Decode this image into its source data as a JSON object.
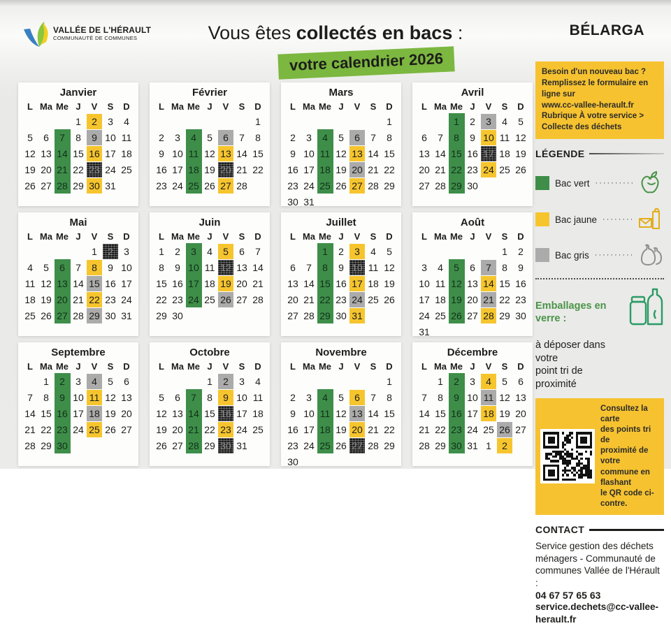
{
  "header": {
    "logo_title": "VALLÉE DE L'HÉRAULT",
    "logo_subtitle": "COMMUNAUTÉ DE COMMUNES",
    "title_pre": "Vous êtes ",
    "title_bold": "collectés en bacs",
    "title_post": " :",
    "banner": "votre calendrier 2026",
    "commune": "BÉLARGA"
  },
  "weekday_headers": [
    "L",
    "Ma",
    "Me",
    "J",
    "V",
    "S",
    "D"
  ],
  "day_codes": {
    "v": "bac-vert",
    "j": "bac-jaune",
    "g": "bac-gris",
    "d": "bac-gris-fonce"
  },
  "months": [
    {
      "name": "Janvier",
      "weeks": [
        [
          "",
          "",
          "",
          "1",
          "2:j",
          "3",
          "4"
        ],
        [
          "5",
          "6",
          "7:v",
          "8",
          "9:g",
          "10",
          "11"
        ],
        [
          "12",
          "13",
          "14:v",
          "15",
          "16:j",
          "17",
          "18"
        ],
        [
          "19",
          "20",
          "21:v",
          "22",
          "23:d",
          "24",
          "25"
        ],
        [
          "26",
          "27",
          "28:v",
          "29",
          "30:j",
          "31",
          ""
        ]
      ]
    },
    {
      "name": "Février",
      "weeks": [
        [
          "",
          "",
          "",
          "",
          "",
          "",
          "1"
        ],
        [
          "2",
          "3",
          "4:v",
          "5",
          "6:g",
          "7",
          "8"
        ],
        [
          "9",
          "10",
          "11:v",
          "12",
          "13:j",
          "14",
          "15"
        ],
        [
          "16",
          "17",
          "18:v",
          "19",
          "20:d",
          "21",
          "22"
        ],
        [
          "23",
          "24",
          "25:v",
          "26",
          "27:j",
          "28",
          ""
        ]
      ]
    },
    {
      "name": "Mars",
      "weeks": [
        [
          "",
          "",
          "",
          "",
          "",
          "",
          "1"
        ],
        [
          "2",
          "3",
          "4:v",
          "5",
          "6:g",
          "7",
          "8"
        ],
        [
          "9",
          "10",
          "11:v",
          "12",
          "13:j",
          "14",
          "15"
        ],
        [
          "16",
          "17",
          "18:v",
          "19",
          "20:g",
          "21",
          "22"
        ],
        [
          "23",
          "24",
          "25:v",
          "26",
          "27:j",
          "28",
          "29"
        ],
        [
          "30",
          "31",
          "",
          "",
          "",
          "",
          ""
        ]
      ]
    },
    {
      "name": "Avril",
      "weeks": [
        [
          "",
          "",
          "1:v",
          "2",
          "3:g",
          "4",
          "5"
        ],
        [
          "6",
          "7",
          "8:v",
          "9",
          "10:j",
          "11",
          "12"
        ],
        [
          "13",
          "14",
          "15:v",
          "16",
          "17:d",
          "18",
          "19"
        ],
        [
          "20",
          "21",
          "22:v",
          "23",
          "24:j",
          "25",
          "26"
        ],
        [
          "27",
          "28",
          "29:v",
          "30",
          "",
          "",
          ""
        ]
      ]
    },
    {
      "name": "Mai",
      "weeks": [
        [
          "",
          "",
          "",
          "",
          "1",
          "2:d",
          "3"
        ],
        [
          "4",
          "5",
          "6:v",
          "7",
          "8:j",
          "9",
          "10"
        ],
        [
          "11",
          "12",
          "13:v",
          "14",
          "15:g",
          "16",
          "17"
        ],
        [
          "18",
          "19",
          "20:v",
          "21",
          "22:j",
          "23",
          "24"
        ],
        [
          "25",
          "26",
          "27:v",
          "28",
          "29:g",
          "30",
          "31"
        ]
      ]
    },
    {
      "name": "Juin",
      "weeks": [
        [
          "1",
          "2",
          "3:v",
          "4",
          "5:j",
          "6",
          "7"
        ],
        [
          "8",
          "9",
          "10:v",
          "11",
          "12:d",
          "13",
          "14"
        ],
        [
          "15",
          "16",
          "17:v",
          "18",
          "19:j",
          "20",
          "21"
        ],
        [
          "22",
          "23",
          "24:v",
          "25",
          "26:g",
          "27",
          "28"
        ],
        [
          "29",
          "30",
          "",
          "",
          "",
          "",
          ""
        ]
      ]
    },
    {
      "name": "Juillet",
      "weeks": [
        [
          "",
          "",
          "1:v",
          "2",
          "3:j",
          "4",
          "5"
        ],
        [
          "6",
          "7",
          "8:v",
          "9",
          "10:d",
          "11",
          "12"
        ],
        [
          "13",
          "14",
          "15:v",
          "16",
          "17:j",
          "18",
          "19"
        ],
        [
          "20",
          "21",
          "22:v",
          "23",
          "24:g",
          "25",
          "26"
        ],
        [
          "27",
          "28",
          "29:v",
          "30",
          "31:j",
          "",
          ""
        ]
      ]
    },
    {
      "name": "Août",
      "weeks": [
        [
          "",
          "",
          "",
          "",
          "",
          "1",
          "2"
        ],
        [
          "3",
          "4",
          "5:v",
          "6",
          "7:g",
          "8",
          "9"
        ],
        [
          "10",
          "11",
          "12:v",
          "13",
          "14:j",
          "15",
          "16"
        ],
        [
          "17",
          "18",
          "19:v",
          "20",
          "21:g",
          "22",
          "23"
        ],
        [
          "24",
          "25",
          "26:v",
          "27",
          "28:j",
          "29",
          "30"
        ],
        [
          "31",
          "",
          "",
          "",
          "",
          "",
          ""
        ]
      ]
    },
    {
      "name": "Septembre",
      "weeks": [
        [
          "",
          "1",
          "2:v",
          "3",
          "4:g",
          "5",
          "6"
        ],
        [
          "7",
          "8",
          "9:v",
          "10",
          "11:j",
          "12",
          "13"
        ],
        [
          "14",
          "15",
          "16:v",
          "17",
          "18:g",
          "19",
          "20"
        ],
        [
          "21",
          "22",
          "23:v",
          "24",
          "25:j",
          "26",
          "27"
        ],
        [
          "28",
          "29",
          "30:v",
          "",
          "",
          "",
          ""
        ]
      ]
    },
    {
      "name": "Octobre",
      "weeks": [
        [
          "",
          "",
          "",
          "1",
          "2:g",
          "3",
          "4"
        ],
        [
          "5",
          "6",
          "7:v",
          "8",
          "9:j",
          "10",
          "11"
        ],
        [
          "12",
          "13",
          "14:v",
          "15",
          "16:d",
          "17",
          "18"
        ],
        [
          "19",
          "20",
          "21:v",
          "22",
          "23:j",
          "24",
          "25"
        ],
        [
          "26",
          "27",
          "28:v",
          "29",
          "30:d",
          "31",
          ""
        ]
      ]
    },
    {
      "name": "Novembre",
      "weeks": [
        [
          "",
          "",
          "",
          "",
          "",
          "",
          "1"
        ],
        [
          "2",
          "3",
          "4:v",
          "5",
          "6:j",
          "7",
          "8"
        ],
        [
          "9",
          "10",
          "11:v",
          "12",
          "13:g",
          "14",
          "15"
        ],
        [
          "16",
          "17",
          "18:v",
          "19",
          "20:j",
          "21",
          "22"
        ],
        [
          "23",
          "24",
          "25:v",
          "26",
          "27:d",
          "28",
          "29"
        ],
        [
          "30",
          "",
          "",
          "",
          "",
          "",
          ""
        ]
      ]
    },
    {
      "name": "Décembre",
      "weeks": [
        [
          "",
          "1",
          "2:v",
          "3",
          "4:j",
          "5",
          "6"
        ],
        [
          "7",
          "8",
          "9:v",
          "10",
          "11:g",
          "12",
          "13"
        ],
        [
          "14",
          "15",
          "16:v",
          "17",
          "18:j",
          "19",
          "20"
        ],
        [
          "21",
          "22",
          "23:v",
          "24",
          "25",
          "26:g",
          "27"
        ],
        [
          "28",
          "29",
          "30:v",
          "31",
          "1",
          "2:j",
          ""
        ]
      ]
    }
  ],
  "sidebar": {
    "info_box": "Besoin d'un nouveau bac ?\nRemplissez le formulaire en ligne sur\nwww.cc-vallee-herault.fr\nRubrique À votre service >\nCollecte des déchets",
    "legend": {
      "title": "LÉGENDE",
      "items": [
        {
          "key": "vert",
          "label": "Bac vert",
          "dots": "·················",
          "icon": "apple-core-icon"
        },
        {
          "key": "jaune",
          "label": "Bac jaune",
          "dots": "···············",
          "icon": "packaging-icon"
        },
        {
          "key": "gris",
          "label": "Bac gris",
          "dots": "·················",
          "icon": "trash-bags-icon"
        }
      ]
    },
    "glass": {
      "title": "Emballages en verre :",
      "text": "à déposer dans votre\npoint tri de proximité",
      "icon": "jar-bottle-icon"
    },
    "qr_box": {
      "text": "Consultez la carte\ndes points tri de\nproximité de votre\ncommune en flashant\nle QR code ci-contre."
    },
    "contact": {
      "title": "CONTACT",
      "body": "Service gestion des déchets\nménagers - Communauté de\ncommunes Vallée de l'Hérault :",
      "phone": "04 67 57 65 63",
      "email": "service.dechets@cc-vallee-herault.fr"
    }
  },
  "colors": {
    "vert": "#3e8e49",
    "jaune": "#f6c52e",
    "gris": "#ababab",
    "dark": "#1c1c1c",
    "banner_green": "#7cb73f",
    "sidebar_yellow": "#f6c230"
  }
}
